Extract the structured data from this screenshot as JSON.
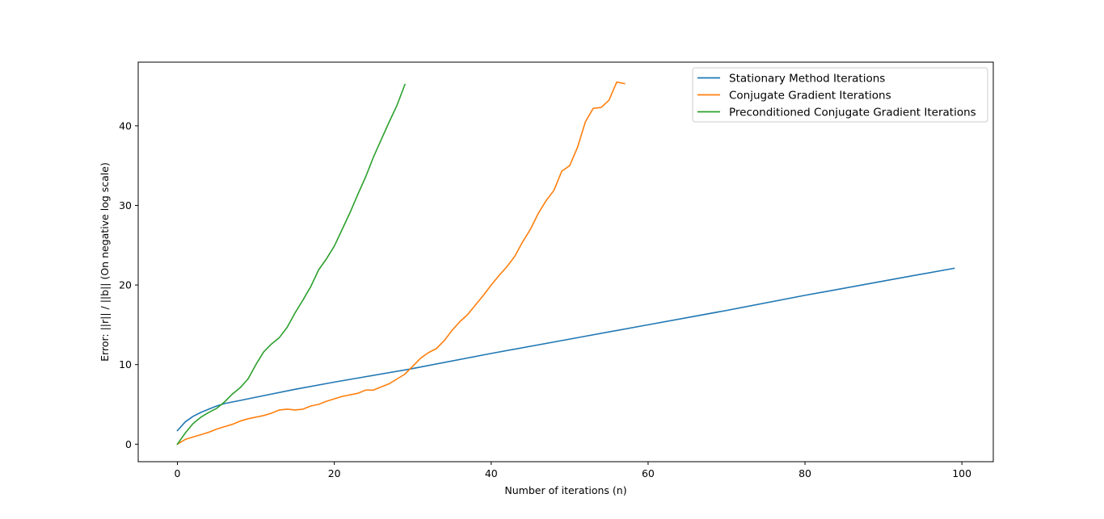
{
  "chart_data": {
    "type": "line",
    "title": "",
    "xlabel": "Number of iterations (n)",
    "ylabel": "Error: ||r|| / ||b|| (On negative log scale)",
    "xlim": [
      -5,
      104
    ],
    "ylim": [
      -2.2,
      48
    ],
    "xticks": [
      0,
      20,
      40,
      60,
      80,
      100
    ],
    "yticks": [
      0,
      10,
      20,
      30,
      40
    ],
    "grid": false,
    "legend_position": "top-right",
    "series": [
      {
        "name": "Stationary Method Iterations",
        "color": "#1f77b4",
        "x": [
          0,
          1,
          2,
          3,
          4,
          5,
          6,
          7,
          8,
          10,
          15,
          20,
          30,
          40,
          50,
          60,
          70,
          80,
          90,
          99
        ],
        "y": [
          1.7,
          2.8,
          3.5,
          4.0,
          4.4,
          4.8,
          5.1,
          5.3,
          5.5,
          5.9,
          6.9,
          7.8,
          9.5,
          11.4,
          13.2,
          15.0,
          16.8,
          18.7,
          20.5,
          22.1
        ]
      },
      {
        "name": "Conjugate Gradient Iterations",
        "color": "#ff7f0e",
        "x": [
          0,
          1,
          2,
          3,
          4,
          5,
          6,
          7,
          8,
          9,
          10,
          11,
          12,
          13,
          14,
          15,
          16,
          17,
          18,
          19,
          20,
          21,
          22,
          23,
          24,
          25,
          26,
          27,
          28,
          29,
          30,
          31,
          32,
          33,
          34,
          35,
          36,
          37,
          38,
          39,
          40,
          41,
          42,
          43,
          44,
          45,
          46,
          47,
          48,
          49,
          50,
          51,
          52,
          53,
          54,
          55,
          56,
          57
        ],
        "y": [
          0.0,
          0.6,
          0.9,
          1.2,
          1.5,
          1.9,
          2.2,
          2.5,
          2.9,
          3.2,
          3.4,
          3.6,
          3.9,
          4.3,
          4.4,
          4.3,
          4.4,
          4.8,
          5.0,
          5.4,
          5.7,
          6.0,
          6.2,
          6.4,
          6.8,
          6.8,
          7.2,
          7.6,
          8.2,
          8.8,
          9.8,
          10.8,
          11.5,
          12.0,
          13.0,
          14.3,
          15.4,
          16.3,
          17.5,
          18.7,
          20.0,
          21.2,
          22.3,
          23.6,
          25.4,
          27.0,
          29.0,
          30.6,
          31.9,
          34.3,
          35.0,
          37.3,
          40.5,
          42.2,
          42.3,
          43.2,
          45.5,
          45.3
        ]
      },
      {
        "name": "Preconditioned Conjugate Gradient Iterations",
        "color": "#2ca02c",
        "x": [
          0,
          1,
          2,
          3,
          4,
          5,
          6,
          7,
          8,
          9,
          10,
          11,
          12,
          13,
          14,
          15,
          16,
          17,
          18,
          19,
          20,
          21,
          22,
          23,
          24,
          25,
          26,
          27,
          28,
          29
        ],
        "y": [
          0.0,
          1.4,
          2.6,
          3.4,
          4.0,
          4.5,
          5.3,
          6.3,
          7.1,
          8.2,
          10.0,
          11.6,
          12.6,
          13.4,
          14.7,
          16.5,
          18.1,
          19.8,
          21.9,
          23.3,
          24.9,
          27.0,
          29.1,
          31.4,
          33.6,
          36.1,
          38.3,
          40.5,
          42.6,
          45.2
        ]
      }
    ]
  }
}
